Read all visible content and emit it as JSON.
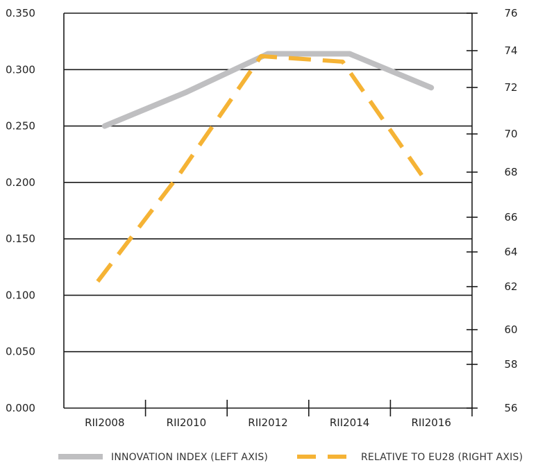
{
  "chart_data": {
    "type": "line",
    "categories": [
      "RII2008",
      "RII2010",
      "RII2012",
      "RII2014",
      "RII2016"
    ],
    "left_axis": {
      "ylim": [
        0,
        0.35
      ],
      "ticks": [
        "0.000",
        "0.050",
        "0.100",
        "0.150",
        "0.200",
        "0.250",
        "0.300",
        "0.350"
      ]
    },
    "right_axis": {
      "ticks": [
        "56",
        "58",
        "60",
        "62",
        "64",
        "66",
        "68",
        "70",
        "72",
        "74",
        "76"
      ]
    },
    "series": [
      {
        "name": "INNOVATION INDEX (LEFT AXIS)",
        "axis": "left",
        "values": [
          0.25,
          0.28,
          0.314,
          0.314,
          0.284
        ],
        "color": "#bfbfc1",
        "style": "solid"
      },
      {
        "name": "RELATIVE TO EU28 (RIGHT AXIS)",
        "axis": "right",
        "values": [
          62.3,
          67.9,
          73.7,
          73.4,
          67.7
        ],
        "color": "#f5b335",
        "style": "dashed"
      }
    ],
    "grid": "horizontal",
    "legend": "bottom"
  }
}
